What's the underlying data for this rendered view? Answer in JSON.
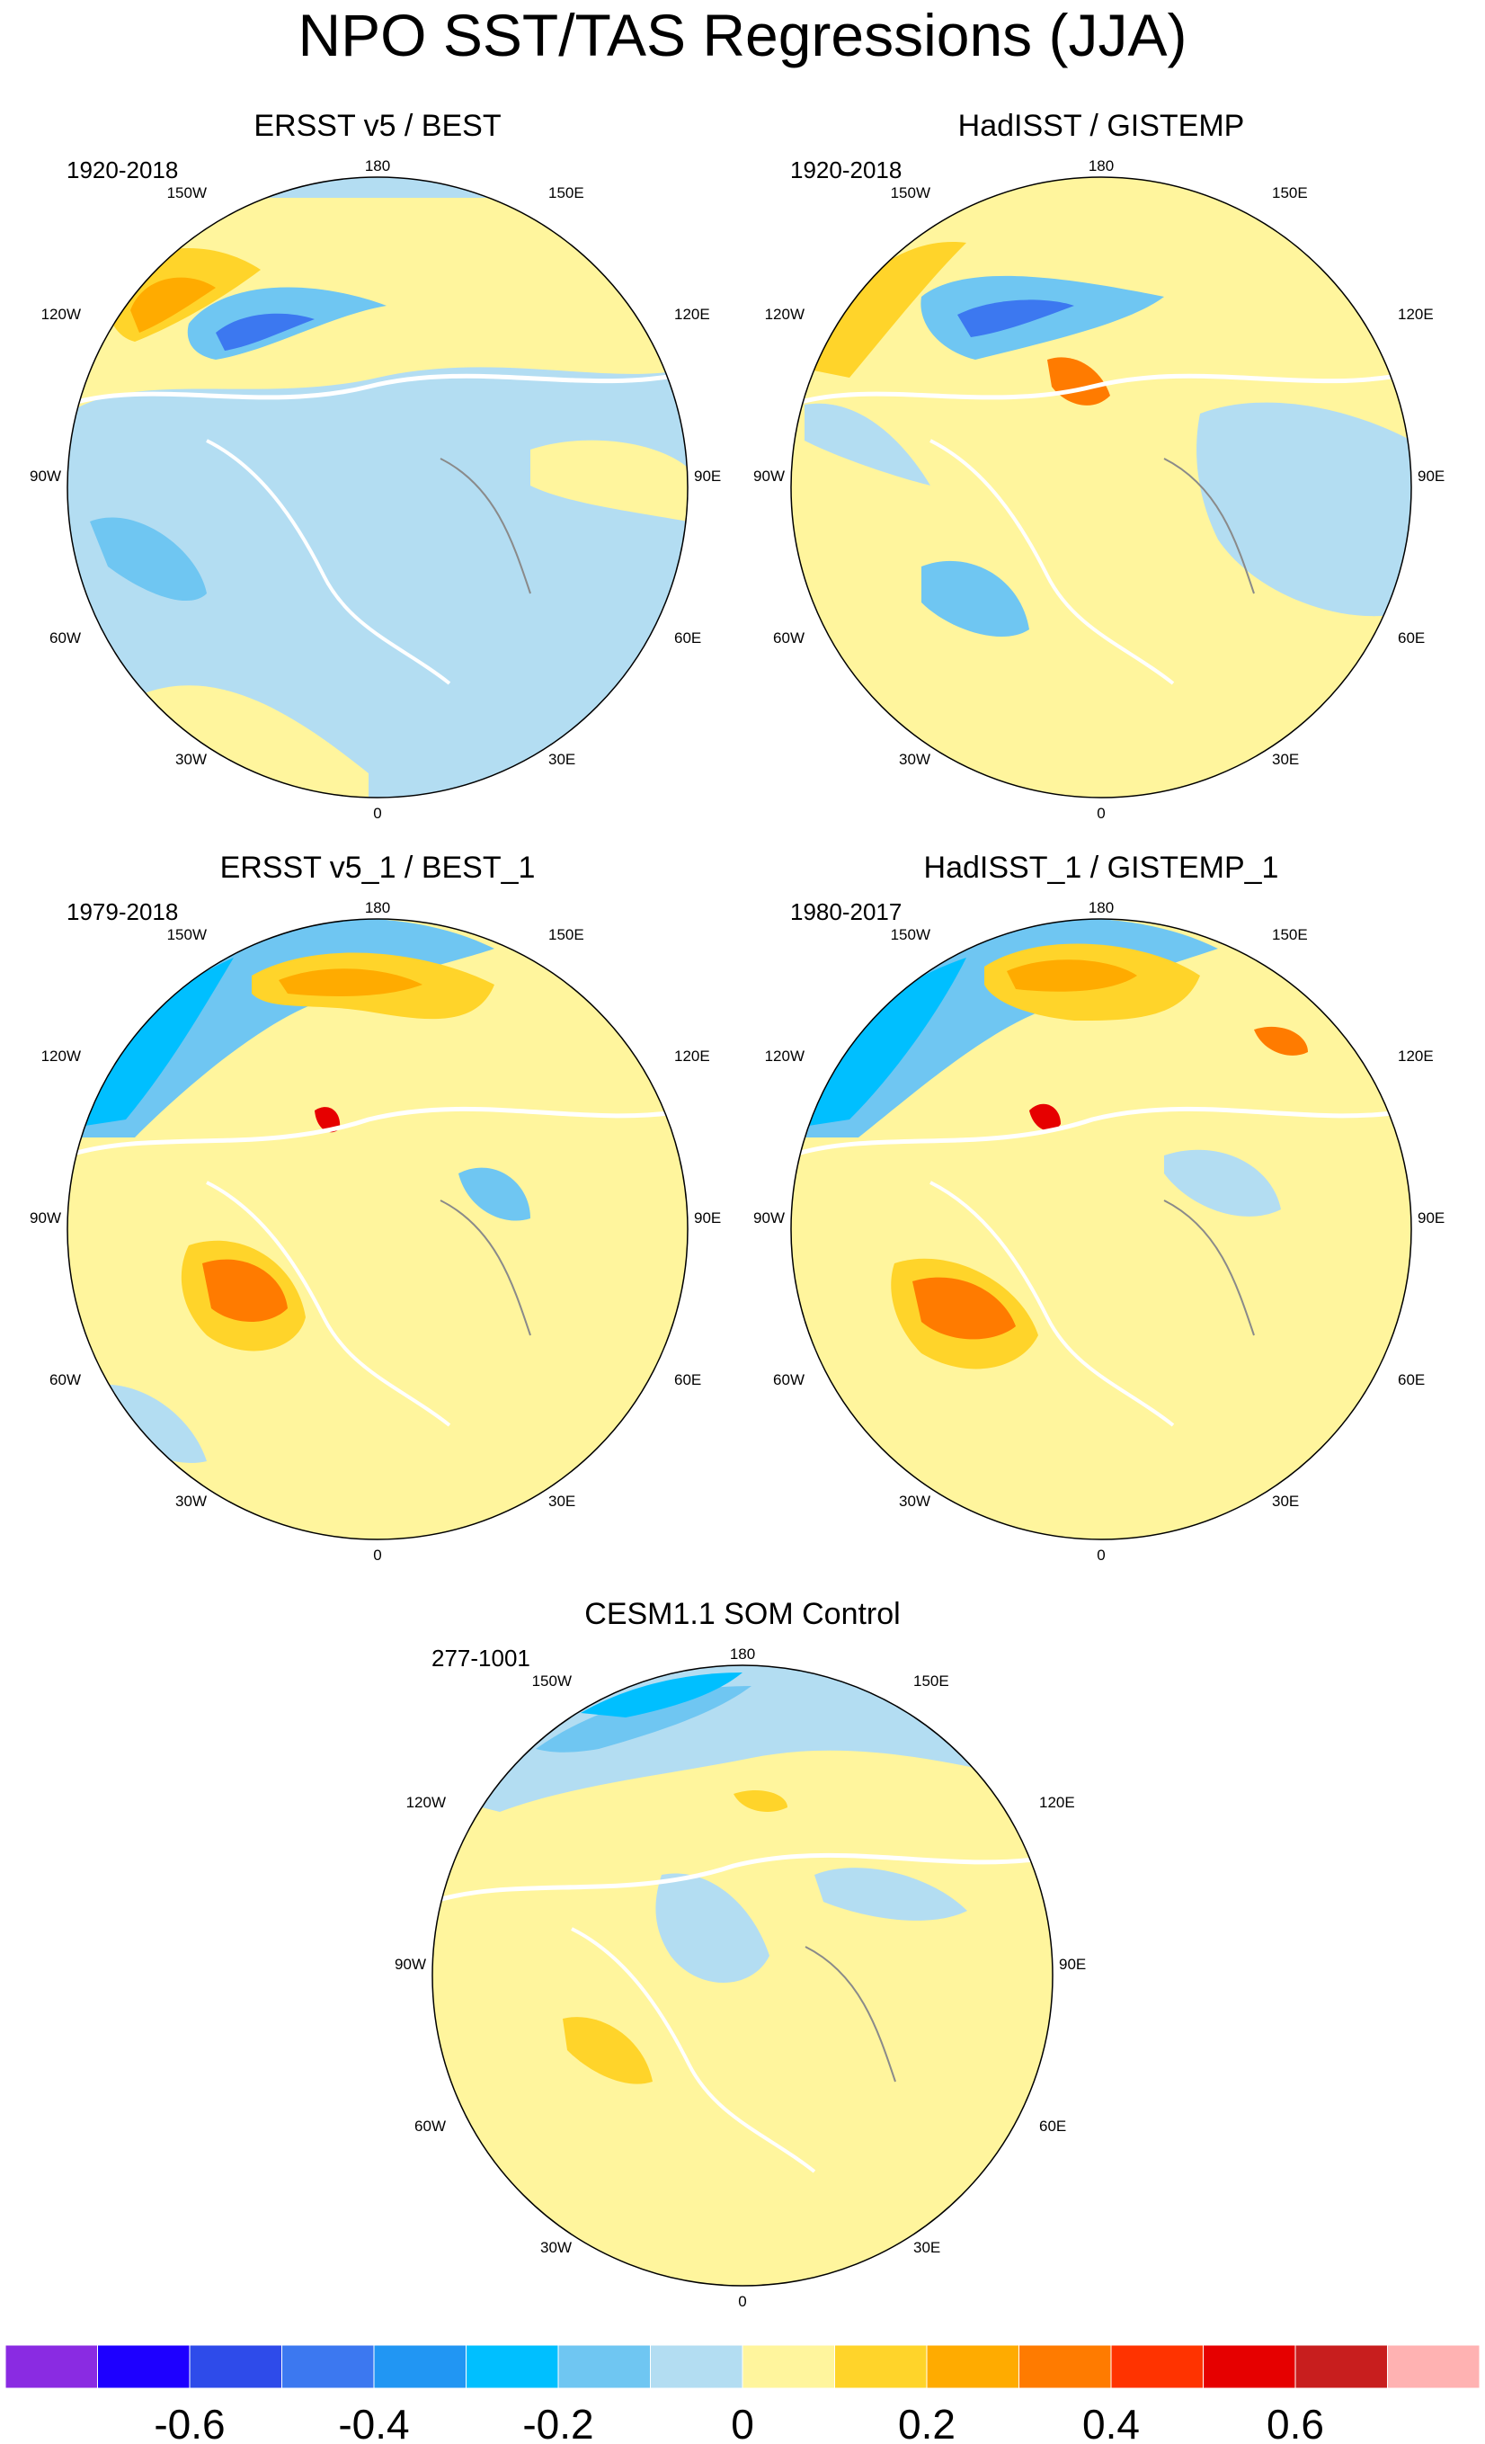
{
  "title": "NPO SST/TAS Regressions (JJA)",
  "panels": [
    {
      "title": "ERSST v5 / BEST",
      "period": "1920-2018"
    },
    {
      "title": "HadISST / GISTEMP",
      "period": "1920-2018"
    },
    {
      "title": "ERSST v5_1 / BEST_1",
      "period": "1979-2018"
    },
    {
      "title": "HadISST_1 / GISTEMP_1",
      "period": "1980-2017"
    },
    {
      "title": "CESM1.1 SOM Control",
      "period": "277-1001"
    }
  ],
  "longitude_labels": {
    "top": "180",
    "bottom": "0",
    "w150": "150W",
    "w120": "120W",
    "w90": "90W",
    "w60": "60W",
    "w30": "30W",
    "e150": "150E",
    "e120": "120E",
    "e90": "90E",
    "e60": "60E",
    "e30": "30E"
  },
  "colorbar": {
    "colors": [
      "#8a2be2",
      "#1e00ff",
      "#2e4bea",
      "#3c78f0",
      "#2196f3",
      "#00bfff",
      "#6fc6f2",
      "#b3ddf2",
      "#fff59d",
      "#ffd42a",
      "#ffab00",
      "#ff7b00",
      "#ff3300",
      "#e60000",
      "#c81e1e",
      "#ffb2b2"
    ],
    "labels": [
      "-0.6",
      "-0.4",
      "-0.2",
      "0",
      "0.2",
      "0.4",
      "0.6"
    ]
  }
}
